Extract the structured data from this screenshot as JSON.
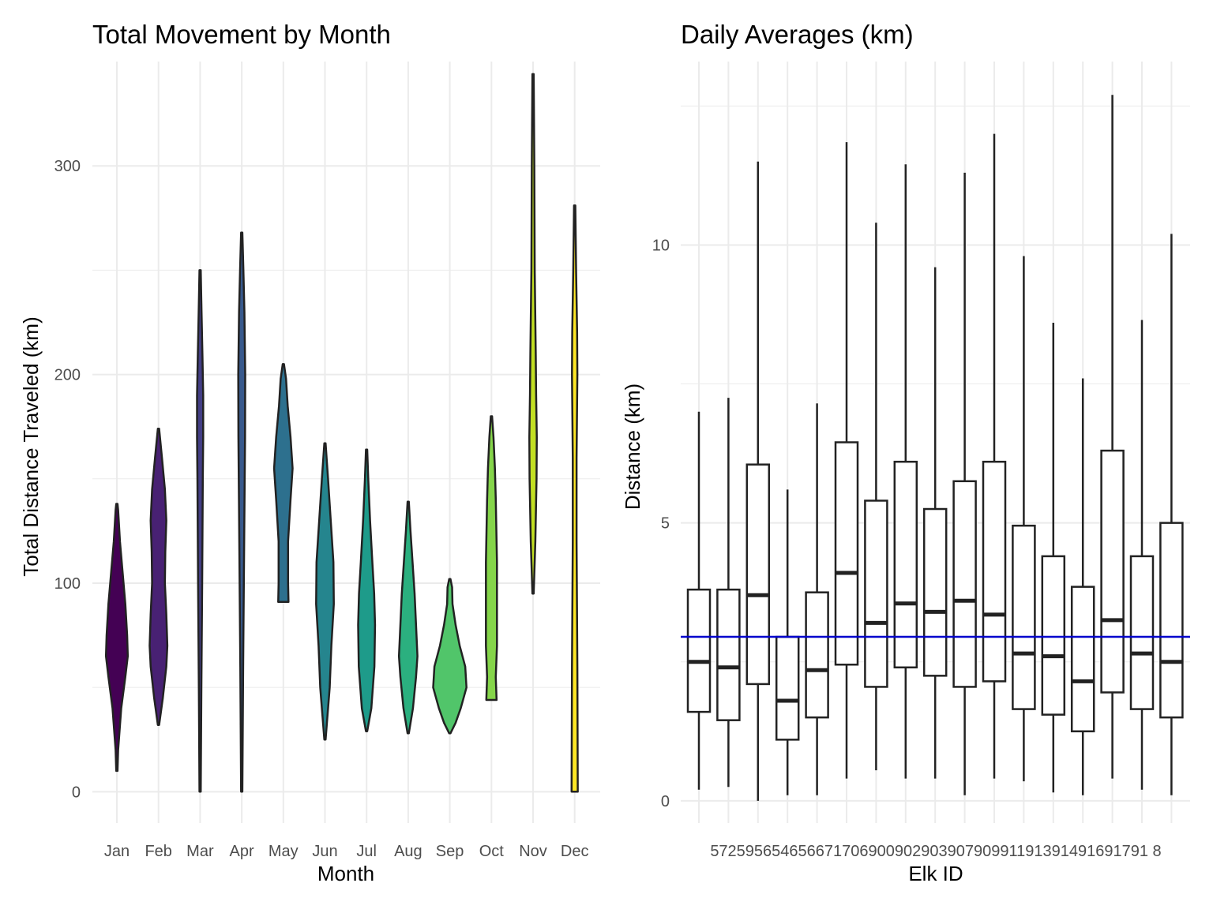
{
  "chart_data": [
    {
      "type": "violin",
      "title": "Total Movement by Month",
      "xlabel": "Month",
      "ylabel": "Total Distance Traveled (km)",
      "ylim": [
        -15,
        350
      ],
      "y_ticks": [
        0,
        100,
        200,
        300
      ],
      "grid": true,
      "legend": "none",
      "categories": [
        "Jan",
        "Feb",
        "Mar",
        "Apr",
        "May",
        "Jun",
        "Jul",
        "Aug",
        "Sep",
        "Oct",
        "Nov",
        "Dec"
      ],
      "colors": [
        "#440154",
        "#482173",
        "#433E85",
        "#38598C",
        "#2D708E",
        "#25858E",
        "#1E9B8A",
        "#2BB07F",
        "#51C56A",
        "#85D54A",
        "#C2DF23",
        "#FDE725"
      ],
      "violins": [
        {
          "month": "Jan",
          "min": 10,
          "max": 138,
          "profile": [
            [
              10,
              0.0
            ],
            [
              20,
              0.03
            ],
            [
              40,
              0.18
            ],
            [
              55,
              0.38
            ],
            [
              65,
              0.5
            ],
            [
              75,
              0.47
            ],
            [
              90,
              0.38
            ],
            [
              105,
              0.25
            ],
            [
              120,
              0.12
            ],
            [
              135,
              0.03
            ],
            [
              138,
              0.0
            ]
          ]
        },
        {
          "month": "Feb",
          "min": 32,
          "max": 174,
          "profile": [
            [
              32,
              0.0
            ],
            [
              45,
              0.18
            ],
            [
              60,
              0.35
            ],
            [
              70,
              0.4
            ],
            [
              85,
              0.35
            ],
            [
              100,
              0.28
            ],
            [
              115,
              0.3
            ],
            [
              130,
              0.35
            ],
            [
              145,
              0.28
            ],
            [
              160,
              0.14
            ],
            [
              174,
              0.0
            ]
          ]
        },
        {
          "month": "Mar",
          "min": 0,
          "max": 250,
          "profile": [
            [
              0,
              0.0
            ],
            [
              50,
              0.03
            ],
            [
              100,
              0.07
            ],
            [
              150,
              0.1
            ],
            [
              170,
              0.12
            ],
            [
              190,
              0.12
            ],
            [
              210,
              0.08
            ],
            [
              230,
              0.04
            ],
            [
              250,
              0.0
            ]
          ]
        },
        {
          "month": "Apr",
          "min": 0,
          "max": 268,
          "profile": [
            [
              0,
              0.0
            ],
            [
              60,
              0.04
            ],
            [
              120,
              0.09
            ],
            [
              170,
              0.13
            ],
            [
              200,
              0.14
            ],
            [
              230,
              0.1
            ],
            [
              250,
              0.05
            ],
            [
              268,
              0.0
            ]
          ]
        },
        {
          "month": "May",
          "min": 91,
          "max": 205,
          "profile": [
            [
              91,
              0.22
            ],
            [
              100,
              0.2
            ],
            [
              120,
              0.2
            ],
            [
              140,
              0.32
            ],
            [
              155,
              0.42
            ],
            [
              170,
              0.32
            ],
            [
              185,
              0.18
            ],
            [
              198,
              0.1
            ],
            [
              205,
              0.0
            ]
          ]
        },
        {
          "month": "Jun",
          "min": 25,
          "max": 167,
          "profile": [
            [
              25,
              0.0
            ],
            [
              50,
              0.2
            ],
            [
              70,
              0.28
            ],
            [
              90,
              0.4
            ],
            [
              110,
              0.38
            ],
            [
              130,
              0.25
            ],
            [
              150,
              0.12
            ],
            [
              167,
              0.0
            ]
          ]
        },
        {
          "month": "Jul",
          "min": 29,
          "max": 164,
          "profile": [
            [
              29,
              0.0
            ],
            [
              40,
              0.2
            ],
            [
              60,
              0.35
            ],
            [
              80,
              0.38
            ],
            [
              95,
              0.34
            ],
            [
              110,
              0.25
            ],
            [
              130,
              0.14
            ],
            [
              150,
              0.05
            ],
            [
              164,
              0.0
            ]
          ]
        },
        {
          "month": "Aug",
          "min": 28,
          "max": 139,
          "profile": [
            [
              28,
              0.0
            ],
            [
              40,
              0.2
            ],
            [
              55,
              0.35
            ],
            [
              65,
              0.42
            ],
            [
              80,
              0.35
            ],
            [
              95,
              0.28
            ],
            [
              110,
              0.18
            ],
            [
              125,
              0.08
            ],
            [
              139,
              0.0
            ]
          ]
        },
        {
          "month": "Sep",
          "min": 28,
          "max": 102,
          "profile": [
            [
              28,
              0.0
            ],
            [
              33,
              0.25
            ],
            [
              40,
              0.5
            ],
            [
              50,
              0.78
            ],
            [
              60,
              0.72
            ],
            [
              70,
              0.45
            ],
            [
              80,
              0.25
            ],
            [
              90,
              0.1
            ],
            [
              98,
              0.08
            ],
            [
              102,
              0.0
            ]
          ]
        },
        {
          "month": "Oct",
          "min": 44,
          "max": 180,
          "profile": [
            [
              44,
              0.22
            ],
            [
              55,
              0.18
            ],
            [
              70,
              0.24
            ],
            [
              90,
              0.24
            ],
            [
              110,
              0.24
            ],
            [
              130,
              0.2
            ],
            [
              140,
              0.18
            ],
            [
              155,
              0.14
            ],
            [
              170,
              0.07
            ],
            [
              180,
              0.0
            ]
          ]
        },
        {
          "month": "Nov",
          "min": 95,
          "max": 344,
          "profile": [
            [
              95,
              0.0
            ],
            [
              120,
              0.08
            ],
            [
              150,
              0.14
            ],
            [
              170,
              0.15
            ],
            [
              190,
              0.12
            ],
            [
              210,
              0.1
            ],
            [
              250,
              0.05
            ],
            [
              300,
              0.03
            ],
            [
              344,
              0.0
            ]
          ]
        },
        {
          "month": "Dec",
          "min": 0,
          "max": 281,
          "profile": [
            [
              0,
              0.12
            ],
            [
              60,
              0.1
            ],
            [
              120,
              0.06
            ],
            [
              160,
              0.06
            ],
            [
              200,
              0.1
            ],
            [
              220,
              0.09
            ],
            [
              250,
              0.04
            ],
            [
              281,
              0.0
            ]
          ]
        }
      ]
    },
    {
      "type": "box",
      "title": "Daily Averages (km)",
      "xlabel": "Elk ID",
      "ylabel": "Distance (km)",
      "ylim": [
        -0.4,
        13.3
      ],
      "y_ticks": [
        0,
        5,
        10
      ],
      "grid": true,
      "legend": "none",
      "categories": [
        "572",
        "595",
        "654",
        "656",
        "671",
        "706",
        "900",
        "902",
        "903",
        "907",
        "909",
        "911",
        "913",
        "914",
        "916",
        "917",
        "918"
      ],
      "tick_text": "57259565465667170690090290390790991191391491691791 8",
      "reference_line": {
        "y": 2.95,
        "color": "#0000CD"
      },
      "boxes": [
        {
          "id": "572",
          "low": 0.2,
          "q1": 1.6,
          "median": 2.5,
          "q3": 3.8,
          "high": 7.0
        },
        {
          "id": "595",
          "low": 0.25,
          "q1": 1.45,
          "median": 2.4,
          "q3": 3.8,
          "high": 7.25
        },
        {
          "id": "654",
          "low": 0.0,
          "q1": 2.1,
          "median": 3.7,
          "q3": 6.05,
          "high": 11.5
        },
        {
          "id": "656",
          "low": 0.1,
          "q1": 1.1,
          "median": 1.8,
          "q3": 2.95,
          "high": 5.6
        },
        {
          "id": "671",
          "low": 0.1,
          "q1": 1.5,
          "median": 2.35,
          "q3": 3.75,
          "high": 7.15
        },
        {
          "id": "706",
          "low": 0.4,
          "q1": 2.45,
          "median": 4.1,
          "q3": 6.45,
          "high": 11.85
        },
        {
          "id": "900",
          "low": 0.55,
          "q1": 2.05,
          "median": 3.2,
          "q3": 5.4,
          "high": 10.4
        },
        {
          "id": "902",
          "low": 0.4,
          "q1": 2.4,
          "median": 3.55,
          "q3": 6.1,
          "high": 11.45
        },
        {
          "id": "903",
          "low": 0.4,
          "q1": 2.25,
          "median": 3.4,
          "q3": 5.25,
          "high": 9.6
        },
        {
          "id": "907",
          "low": 0.1,
          "q1": 2.05,
          "median": 3.6,
          "q3": 5.75,
          "high": 11.3
        },
        {
          "id": "909",
          "low": 0.4,
          "q1": 2.15,
          "median": 3.35,
          "q3": 6.1,
          "high": 12.0
        },
        {
          "id": "911",
          "low": 0.35,
          "q1": 1.65,
          "median": 2.65,
          "q3": 4.95,
          "high": 9.8
        },
        {
          "id": "913",
          "low": 0.15,
          "q1": 1.55,
          "median": 2.6,
          "q3": 4.4,
          "high": 8.6
        },
        {
          "id": "914",
          "low": 0.1,
          "q1": 1.25,
          "median": 2.15,
          "q3": 3.85,
          "high": 7.6
        },
        {
          "id": "916",
          "low": 0.4,
          "q1": 1.95,
          "median": 3.25,
          "q3": 6.3,
          "high": 12.7
        },
        {
          "id": "917",
          "low": 0.2,
          "q1": 1.65,
          "median": 2.65,
          "q3": 4.4,
          "high": 8.65
        },
        {
          "id": "918",
          "low": 0.1,
          "q1": 1.5,
          "median": 2.5,
          "q3": 5.0,
          "high": 10.2
        }
      ]
    }
  ]
}
